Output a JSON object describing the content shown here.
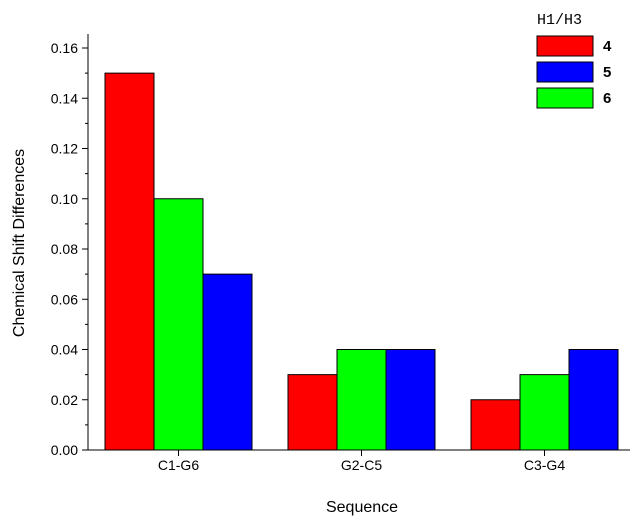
{
  "chart_data": {
    "type": "bar",
    "categories": [
      "C1-G6",
      "G2-C5",
      "C3-G4"
    ],
    "series": [
      {
        "name": "4",
        "color": "#ff0000",
        "values": [
          0.15,
          0.03,
          0.02
        ]
      },
      {
        "name": "6",
        "color": "#00ff00",
        "values": [
          0.1,
          0.04,
          0.03
        ]
      },
      {
        "name": "5",
        "color": "#0000ff",
        "values": [
          0.07,
          0.04,
          0.04
        ]
      }
    ],
    "legend": {
      "title": "H1/H3",
      "placement": "top-right",
      "entries": [
        {
          "label": "4",
          "color": "#ff0000"
        },
        {
          "label": "5",
          "color": "#0000ff"
        },
        {
          "label": "6",
          "color": "#00ff00"
        }
      ]
    },
    "xlabel": "Sequence",
    "ylabel": "Chemical Shift Differences",
    "ylim": [
      0,
      0.165
    ],
    "yticks": [
      "0.00",
      "0.02",
      "0.04",
      "0.06",
      "0.08",
      "0.10",
      "0.12",
      "0.14",
      "0.16"
    ],
    "grid": false
  }
}
